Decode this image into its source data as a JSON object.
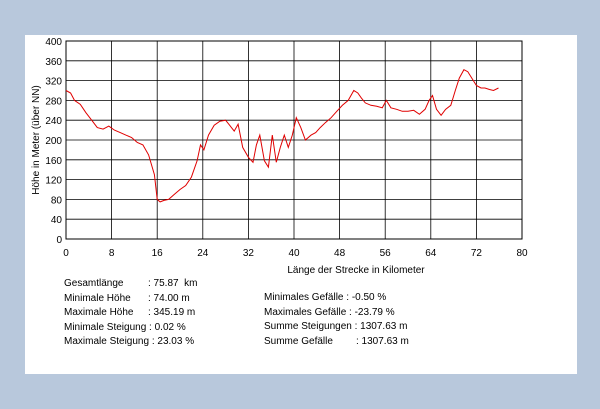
{
  "chart_data": {
    "type": "line",
    "xlabel": "Länge der Strecke in Kilometer",
    "ylabel": "Höhe in Meter (über NN)",
    "xlim": [
      0,
      80
    ],
    "ylim": [
      0,
      400
    ],
    "x_ticks": [
      "0",
      "8",
      "16",
      "24",
      "32",
      "40",
      "48",
      "56",
      "64",
      "72",
      "80"
    ],
    "y_ticks": [
      "0",
      "40",
      "80",
      "120",
      "160",
      "200",
      "240",
      "280",
      "320",
      "360",
      "400"
    ],
    "grid": true,
    "line_color": "#e00000",
    "series": [
      {
        "x": [
          0,
          0.8,
          1.5,
          2.5,
          3.5,
          4.5,
          5.5,
          6.5,
          7.5,
          8.5,
          9.5,
          10.5,
          11.5,
          12.5,
          13.5,
          14.5,
          15.5,
          16.0,
          16.5,
          17.2,
          18,
          19,
          20,
          21,
          22,
          23,
          23.6,
          24.2,
          25,
          26,
          27,
          28,
          28.7,
          29.5,
          30.2,
          31,
          32,
          32.8,
          33.4,
          34,
          34.8,
          35.5,
          36.2,
          36.9,
          37.6,
          38.3,
          39,
          39.7,
          40.4,
          41.2,
          42,
          43,
          43.8,
          44.6,
          45.5,
          46.5,
          47.5,
          48.5,
          49.5,
          50.5,
          51.2,
          51.8,
          52.5,
          53.5,
          54.5,
          55.5,
          56.2,
          57,
          58,
          59,
          60,
          61,
          62,
          63,
          63.7,
          64.3,
          65,
          65.8,
          66.6,
          67.5,
          68.3,
          69,
          69.8,
          70.5,
          71.2,
          72,
          72.8,
          73.5,
          74.3,
          75,
          75.87
        ],
        "y": [
          300,
          295,
          280,
          272,
          255,
          240,
          225,
          222,
          228,
          220,
          215,
          210,
          205,
          195,
          190,
          170,
          130,
          80,
          75,
          78,
          80,
          90,
          100,
          108,
          125,
          158,
          190,
          180,
          210,
          230,
          238,
          240,
          230,
          218,
          232,
          185,
          165,
          155,
          190,
          210,
          158,
          145,
          210,
          155,
          185,
          210,
          185,
          210,
          245,
          225,
          200,
          210,
          215,
          225,
          235,
          245,
          258,
          270,
          280,
          300,
          295,
          285,
          275,
          270,
          268,
          265,
          280,
          265,
          262,
          258,
          258,
          260,
          252,
          262,
          280,
          290,
          262,
          250,
          262,
          270,
          300,
          325,
          342,
          338,
          325,
          310,
          305,
          305,
          302,
          300,
          305
        ]
      }
    ]
  },
  "stats": {
    "left": [
      {
        "label": "Gesamtlänge",
        "value": ": 75.87  km"
      },
      {
        "label": "Minimale Höhe",
        "value": ": 74.00 m"
      },
      {
        "label": "Maximale Höhe",
        "value": ": 345.19 m"
      },
      {
        "label": "Minimale Steigung",
        "value": ": 0.02 %"
      },
      {
        "label": "Maximale Steigung",
        "value": ": 23.03 %"
      }
    ],
    "right": [
      {
        "label": "Minimales Gefälle",
        "value": ": -0.50 %"
      },
      {
        "label": "Maximales Gefälle",
        "value": ": -23.79 %"
      },
      {
        "label": "Summe Steigungen",
        "value": ": 1307.63 m"
      },
      {
        "label": "Summe Gefälle",
        "value": ": 1307.63 m"
      }
    ]
  }
}
